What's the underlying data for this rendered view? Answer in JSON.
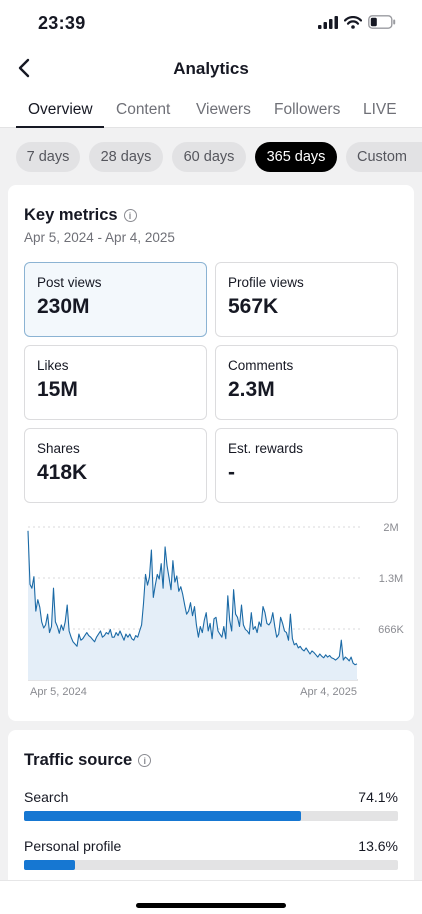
{
  "status_bar": {
    "time": "23:39"
  },
  "header": {
    "title": "Analytics"
  },
  "tabs": [
    {
      "label": "Overview",
      "active": true
    },
    {
      "label": "Content",
      "active": false
    },
    {
      "label": "Viewers",
      "active": false
    },
    {
      "label": "Followers",
      "active": false
    },
    {
      "label": "LIVE",
      "active": false
    }
  ],
  "ranges": [
    {
      "label": "7 days",
      "selected": false
    },
    {
      "label": "28 days",
      "selected": false
    },
    {
      "label": "60 days",
      "selected": false
    },
    {
      "label": "365 days",
      "selected": true
    },
    {
      "label": "Custom",
      "selected": false
    }
  ],
  "key_metrics": {
    "title": "Key metrics",
    "date_range": "Apr 5, 2024 - Apr 4, 2025",
    "metrics": [
      {
        "label": "Post views",
        "value": "230M",
        "selected": true
      },
      {
        "label": "Profile views",
        "value": "567K",
        "selected": false
      },
      {
        "label": "Likes",
        "value": "15M",
        "selected": false
      },
      {
        "label": "Comments",
        "value": "2.3M",
        "selected": false
      },
      {
        "label": "Shares",
        "value": "418K",
        "selected": false
      },
      {
        "label": "Est. rewards",
        "value": "-",
        "selected": false
      }
    ]
  },
  "chart_data": {
    "type": "area",
    "series": [
      {
        "values": [
          1950000,
          1250000,
          1200000,
          1350000,
          900000,
          1050000,
          950000,
          760000,
          680000,
          720000,
          860000,
          620000,
          700000,
          1200000,
          760000,
          700000,
          610000,
          720000,
          650000,
          760000,
          980000,
          640000,
          560000,
          500000,
          470000,
          440000,
          600000,
          520000,
          540000,
          580000,
          620000,
          580000,
          560000,
          530000,
          500000,
          560000,
          600000,
          640000,
          560000,
          580000,
          620000,
          600000,
          660000,
          560000,
          560000,
          620000,
          580000,
          640000,
          580000,
          520000,
          600000,
          560000,
          600000,
          540000,
          520000,
          580000,
          560000,
          640000,
          720000,
          1000000,
          1380000,
          1240000,
          1340000,
          1700000,
          1080000,
          1240000,
          1380000,
          1320000,
          1520000,
          1200000,
          1740000,
          1500000,
          1340000,
          1180000,
          1560000,
          1280000,
          1360000,
          1160000,
          1220000,
          1120000,
          980000,
          860000,
          900000,
          1010000,
          840000,
          960000,
          720000,
          560000,
          700000,
          620000,
          780000,
          880000,
          640000,
          740000,
          540000,
          800000,
          820000,
          640000,
          600000,
          560000,
          700000,
          540000,
          1100000,
          780000,
          640000,
          1180000,
          860000,
          820000,
          700000,
          980000,
          720000,
          660000,
          640000,
          600000,
          880000,
          660000,
          700000,
          620000,
          760000,
          700000,
          960000,
          880000,
          740000,
          720000,
          760000,
          880000,
          700000,
          560000,
          600000,
          820000,
          740000,
          640000,
          620000,
          520000,
          860000,
          540000,
          460000,
          480000,
          420000,
          440000,
          400000,
          380000,
          420000,
          380000,
          340000,
          380000,
          360000,
          330000,
          300000,
          340000,
          310000,
          290000,
          330000,
          300000,
          320000,
          290000,
          280000,
          260000,
          280000,
          310000,
          520000,
          260000,
          300000,
          280000,
          250000,
          300000,
          220000,
          200000,
          210000
        ]
      }
    ],
    "x_start_label": "Apr 5, 2024",
    "x_end_label": "Apr 4, 2025",
    "y_ticks": [
      "2M",
      "1.3M",
      "666K"
    ],
    "y_tick_values": [
      2000000,
      1333333,
      666666
    ],
    "ylim": [
      0,
      2000000
    ],
    "grid": true,
    "color": "#1b6aa6",
    "fill_color": "#e4eef8"
  },
  "traffic_source": {
    "title": "Traffic source",
    "items": [
      {
        "label": "Search",
        "pct": "74.1%",
        "fraction": 0.741
      },
      {
        "label": "Personal profile",
        "pct": "13.6%",
        "fraction": 0.136
      }
    ]
  }
}
